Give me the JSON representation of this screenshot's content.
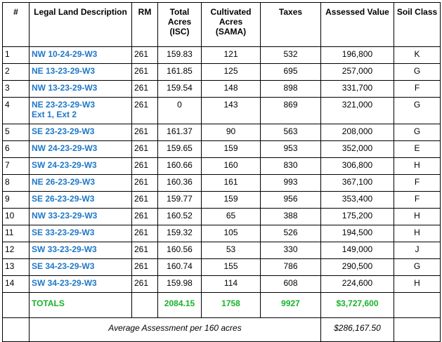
{
  "headers": {
    "num": "#",
    "legal": "Legal Land Description",
    "rm": "RM",
    "total_acres": "Total Acres (ISC)",
    "cultivated": "Cultivated Acres (SAMA)",
    "taxes": "Taxes",
    "assessed": "Assessed Value",
    "soil": "Soil Class"
  },
  "rows": [
    {
      "num": "1",
      "desc": "NW 10-24-29-W3",
      "rm": "261",
      "total": "159.83",
      "cult": "121",
      "taxes": "532",
      "assessed": "196,800",
      "soil": "K"
    },
    {
      "num": "2",
      "desc": "NE 13-23-29-W3",
      "rm": "261",
      "total": "161.85",
      "cult": "125",
      "taxes": "695",
      "assessed": "257,000",
      "soil": "G"
    },
    {
      "num": "3",
      "desc": "NW 13-23-29-W3",
      "rm": "261",
      "total": "159.54",
      "cult": "148",
      "taxes": "898",
      "assessed": "331,700",
      "soil": "F"
    },
    {
      "num": "4",
      "desc": "NE 23-23-29-W3",
      "desc2": "Ext 1, Ext 2",
      "rm": "261",
      "total": "0",
      "cult": "143",
      "taxes": "869",
      "assessed": "321,000",
      "soil": "G"
    },
    {
      "num": "5",
      "desc": "SE 23-23-29-W3",
      "rm": "261",
      "total": "161.37",
      "cult": "90",
      "taxes": "563",
      "assessed": "208,000",
      "soil": "G"
    },
    {
      "num": "6",
      "desc": "NW 24-23-29-W3",
      "rm": "261",
      "total": "159.65",
      "cult": "159",
      "taxes": "953",
      "assessed": "352,000",
      "soil": "E"
    },
    {
      "num": "7",
      "desc": "SW 24-23-29-W3",
      "rm": "261",
      "total": "160.66",
      "cult": "160",
      "taxes": "830",
      "assessed": "306,800",
      "soil": "H"
    },
    {
      "num": "8",
      "desc": "NE 26-23-29-W3",
      "rm": "261",
      "total": "160.36",
      "cult": "161",
      "taxes": "993",
      "assessed": "367,100",
      "soil": "F"
    },
    {
      "num": "9",
      "desc": "SE 26-23-29-W3",
      "rm": "261",
      "total": "159.77",
      "cult": "159",
      "taxes": "956",
      "assessed": "353,400",
      "soil": "F"
    },
    {
      "num": "10",
      "desc": "NW 33-23-29-W3",
      "rm": "261",
      "total": "160.52",
      "cult": "65",
      "taxes": "388",
      "assessed": "175,200",
      "soil": "H"
    },
    {
      "num": "11",
      "desc": "SE 33-23-29-W3",
      "rm": "261",
      "total": "159.32",
      "cult": "105",
      "taxes": "526",
      "assessed": "194,500",
      "soil": "H"
    },
    {
      "num": "12",
      "desc": "SW 33-23-29-W3",
      "rm": "261",
      "total": "160.56",
      "cult": "53",
      "taxes": "330",
      "assessed": "149,000",
      "soil": "J"
    },
    {
      "num": "13",
      "desc": "SE 34-23-29-W3",
      "rm": "261",
      "total": "160.74",
      "cult": "155",
      "taxes": "786",
      "assessed": "290,500",
      "soil": "G"
    },
    {
      "num": "14",
      "desc": "SW 34-23-29-W3",
      "rm": "261",
      "total": "159.98",
      "cult": "114",
      "taxes": "608",
      "assessed": "224,600",
      "soil": "H"
    }
  ],
  "totals": {
    "label": "TOTALS",
    "total_acres": "2084.15",
    "cultivated": "1758",
    "taxes": "9927",
    "assessed": "$3,727,600"
  },
  "average": {
    "label": "Average Assessment per 160 acres",
    "value": "$286,167.50"
  },
  "colors": {
    "description_text": "#1f78c8",
    "totals_text": "#18b22a"
  }
}
